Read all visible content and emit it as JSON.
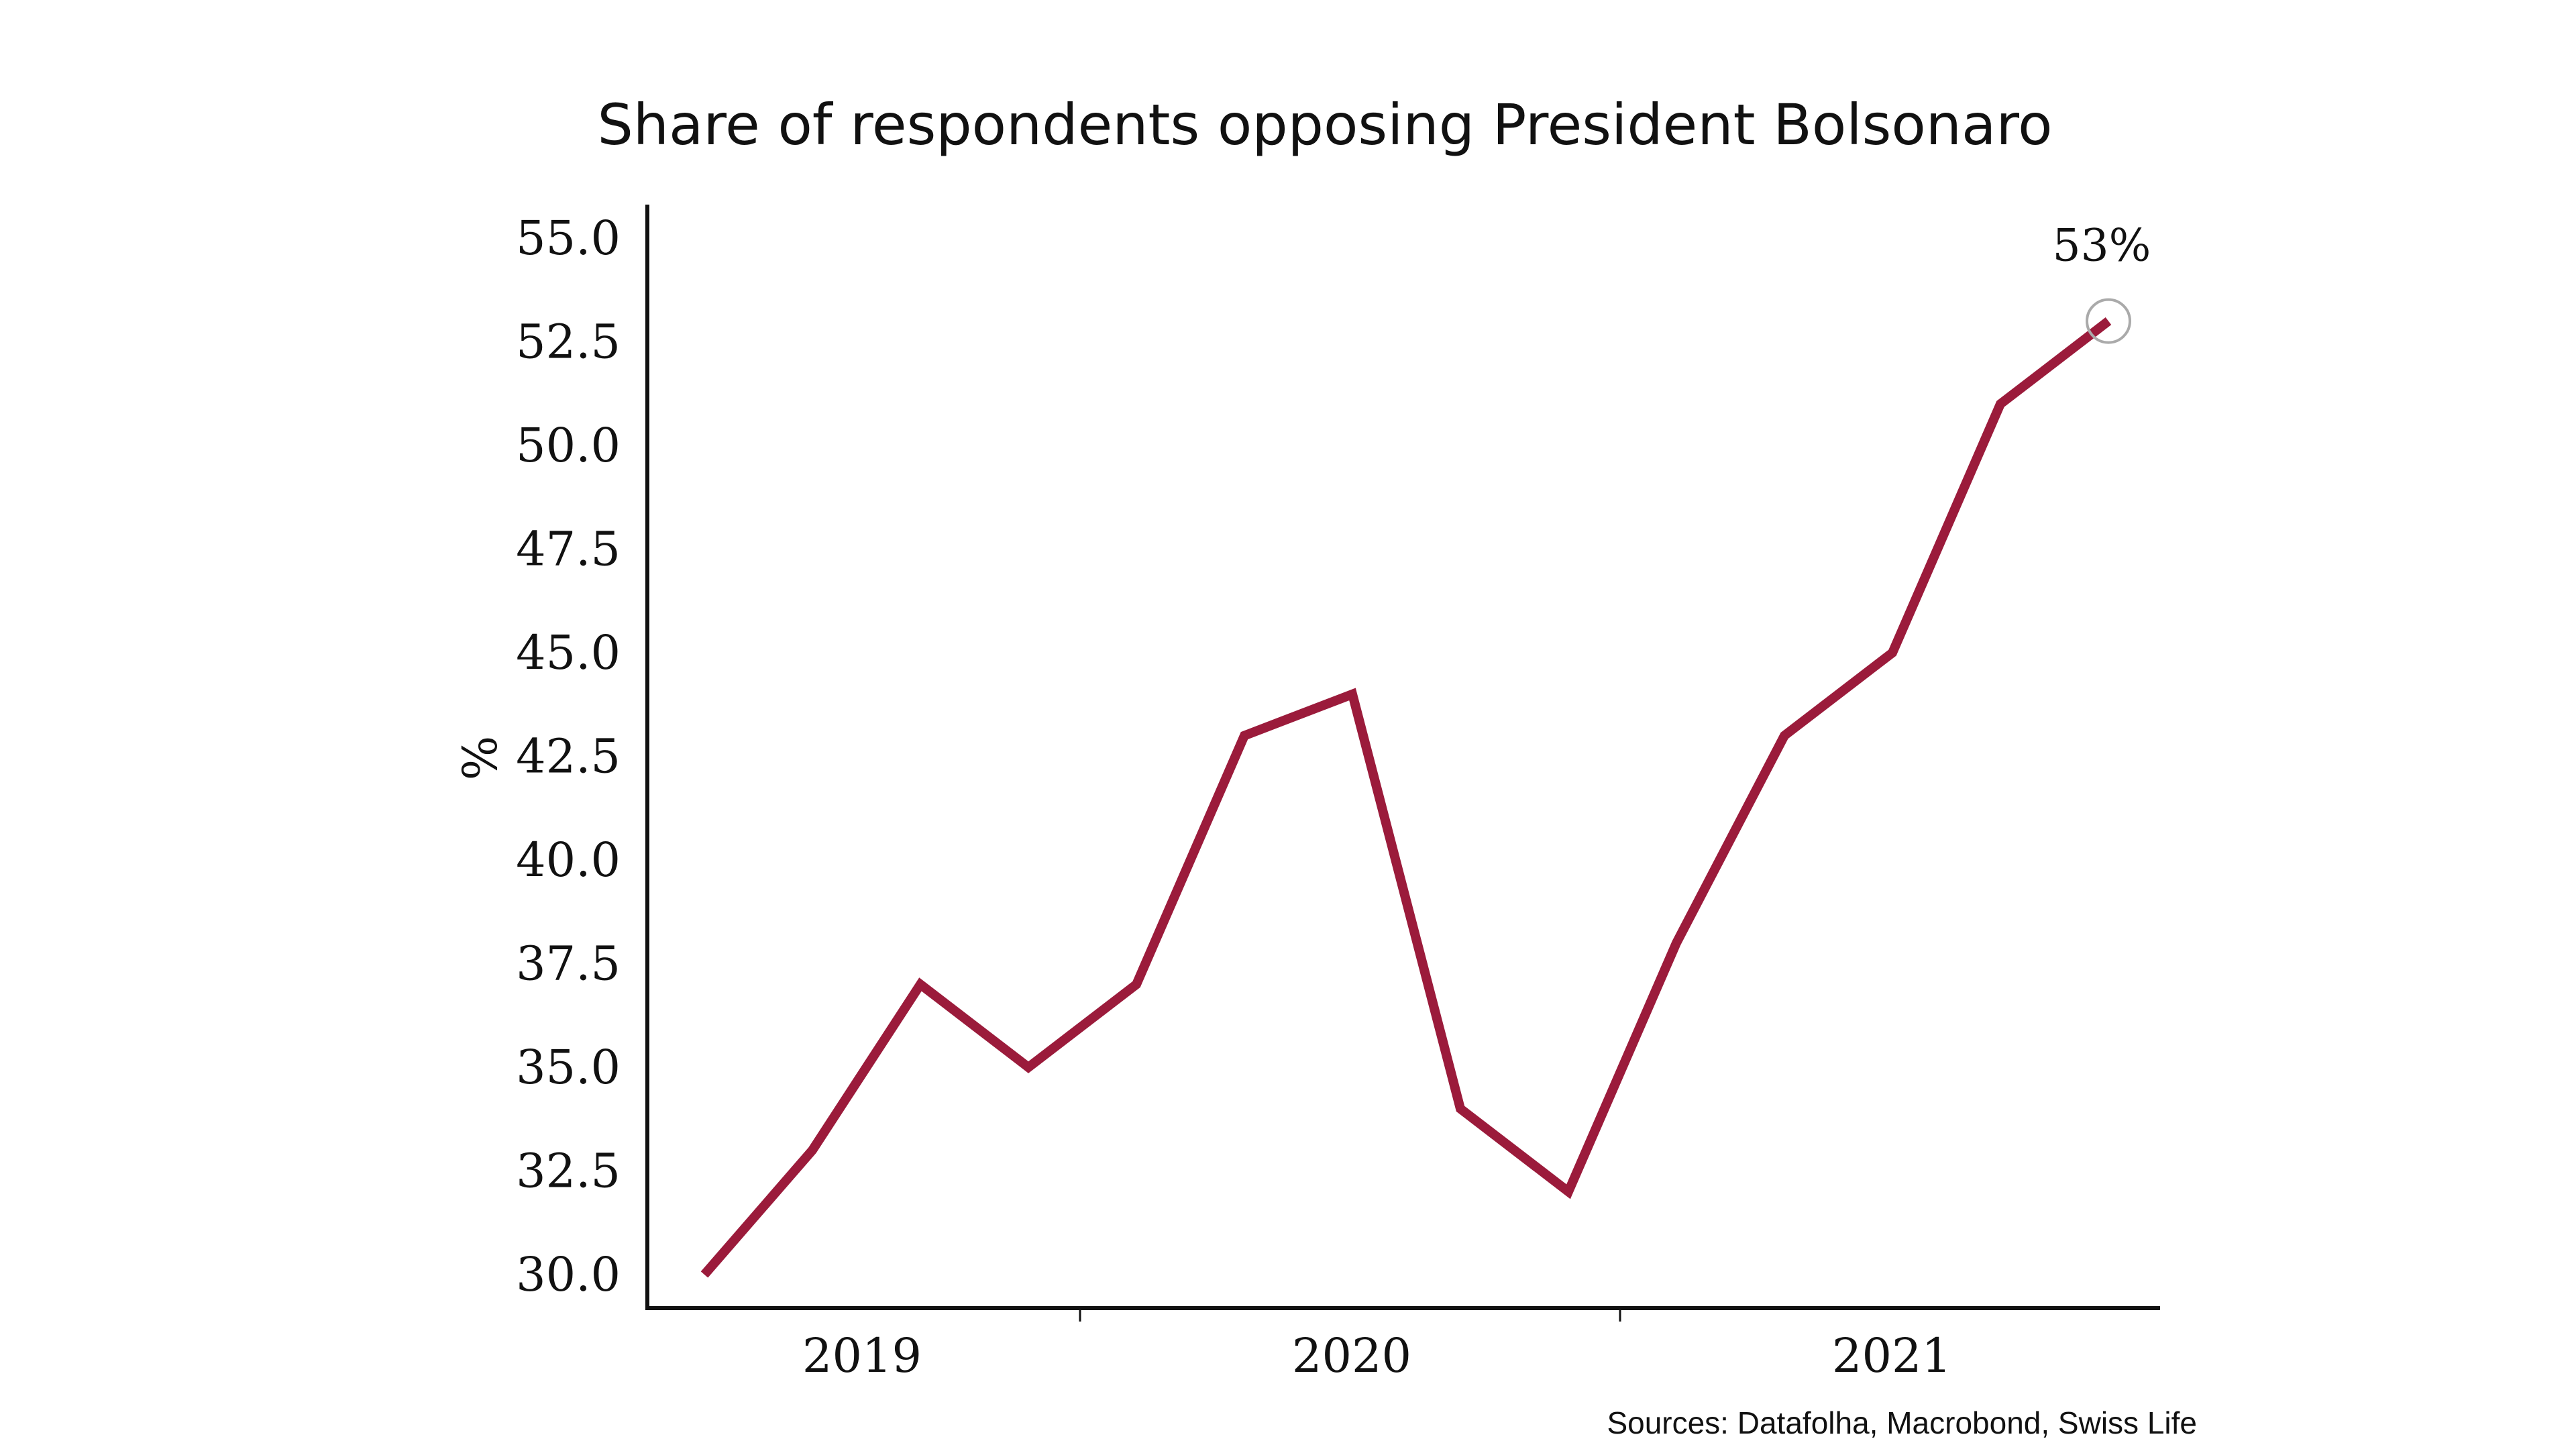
{
  "chart_data": {
    "type": "line",
    "title": "Share of respondents opposing President Bolsonaro",
    "xlabel": "",
    "ylabel": "%",
    "ylim": [
      30.0,
      55.0
    ],
    "yticks": [
      "30.0",
      "32.5",
      "35.0",
      "37.5",
      "40.0",
      "42.5",
      "45.0",
      "47.5",
      "50.0",
      "52.5",
      "55.0"
    ],
    "xticks": [
      "2019",
      "2020",
      "2021"
    ],
    "series": [
      {
        "color": "#9b1b3b",
        "values": [
          30,
          33,
          37,
          35,
          37,
          43,
          44,
          34,
          32,
          38,
          43,
          45,
          51,
          53
        ]
      }
    ],
    "annotation": {
      "text": "53%"
    },
    "grid": false,
    "legend": "none"
  },
  "source": "Sources: Datafolha, Macrobond, Swiss Life"
}
